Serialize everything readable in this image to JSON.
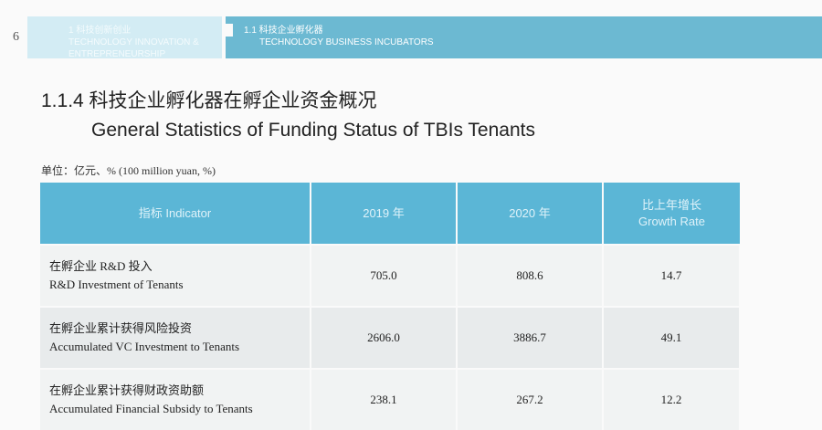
{
  "page_number": "6",
  "header": {
    "chapter": {
      "cn": "1 科技创新创业",
      "en": "TECHNOLOGY INNOVATION & ENTREPRENEURSHIP"
    },
    "section": {
      "cn": "1.1 科技企业孵化器",
      "en": "TECHNOLOGY BUSINESS INCUBATORS"
    }
  },
  "title": {
    "cn": "1.1.4 科技企业孵化器在孵企业资金概况",
    "en": "General Statistics of Funding Status of TBIs Tenants"
  },
  "unit": "单位：亿元、% (100 million yuan, %)",
  "table": {
    "headers": [
      "指标 Indicator",
      "2019 年",
      "2020 年",
      "比上年增长",
      "Growth Rate"
    ],
    "rows": [
      {
        "cn": "在孵企业 R&D 投入",
        "en": "R&D Investment of Tenants",
        "y2019": "705.0",
        "y2020": "808.6",
        "growth": "14.7"
      },
      {
        "cn": "在孵企业累计获得风险投资",
        "en": "Accumulated VC Investment to Tenants",
        "y2019": "2606.0",
        "y2020": "3886.7",
        "growth": "49.1"
      },
      {
        "cn": "在孵企业累计获得财政资助额",
        "en": "Accumulated Financial Subsidy to Tenants",
        "y2019": "238.1",
        "y2020": "267.2",
        "growth": "12.2"
      }
    ]
  }
}
